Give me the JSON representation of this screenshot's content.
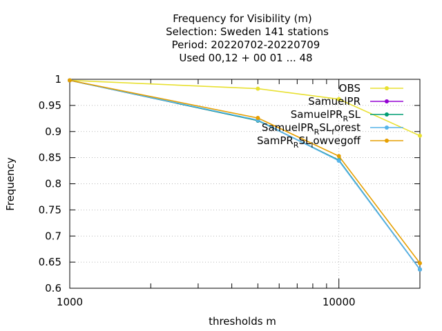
{
  "chart_data": {
    "type": "line",
    "title_lines": [
      "Frequency  for Visibility (m)",
      "Selection: Sweden    141 stations",
      "Period: 20220702-20220709",
      "Used  00,12  + 00 01 ... 48"
    ],
    "xlabel": "thresholds m",
    "ylabel": "Frequency",
    "xscale": "log",
    "xlim": [
      1000,
      20000
    ],
    "ylim": [
      0.6,
      1.0
    ],
    "xticks": [
      1000,
      10000
    ],
    "xtick_labels": [
      "1000",
      "10000"
    ],
    "yticks": [
      0.6,
      0.65,
      0.7,
      0.75,
      0.8,
      0.85,
      0.9,
      0.95,
      1.0
    ],
    "ytick_labels": [
      "0.6",
      "0.65",
      "0.7",
      "0.75",
      "0.8",
      "0.85",
      "0.9",
      "0.95",
      "1"
    ],
    "grid": true,
    "legend_position": "top-right",
    "x": [
      1000,
      5000,
      10000,
      20000
    ],
    "series": [
      {
        "name": "OBS",
        "color": "#e8e030",
        "values": [
          0.998,
          0.982,
          0.962,
          0.892
        ]
      },
      {
        "name": "SamuelPR",
        "color": "#9400d3",
        "values": [
          0.998,
          0.921,
          0.845,
          0.636
        ]
      },
      {
        "name": "SamuelPR_R SL",
        "name_parts": [
          "SamuelPR",
          "R",
          "SL"
        ],
        "color": "#009e73",
        "values": [
          0.998,
          0.921,
          0.845,
          0.636
        ]
      },
      {
        "name": "SamuelPR_R SL_forest",
        "name_parts": [
          "SamuelPR",
          "R",
          "SL",
          "f",
          "orest"
        ],
        "color": "#56b4e9",
        "values": [
          0.998,
          0.922,
          0.844,
          0.636
        ]
      },
      {
        "name": "SamPR_R SL_lowvegoff",
        "name_parts": [
          "SamPR",
          "R",
          "SL",
          "l",
          "owvegoff"
        ],
        "color": "#e69f00",
        "values": [
          0.998,
          0.926,
          0.853,
          0.648
        ]
      }
    ]
  }
}
